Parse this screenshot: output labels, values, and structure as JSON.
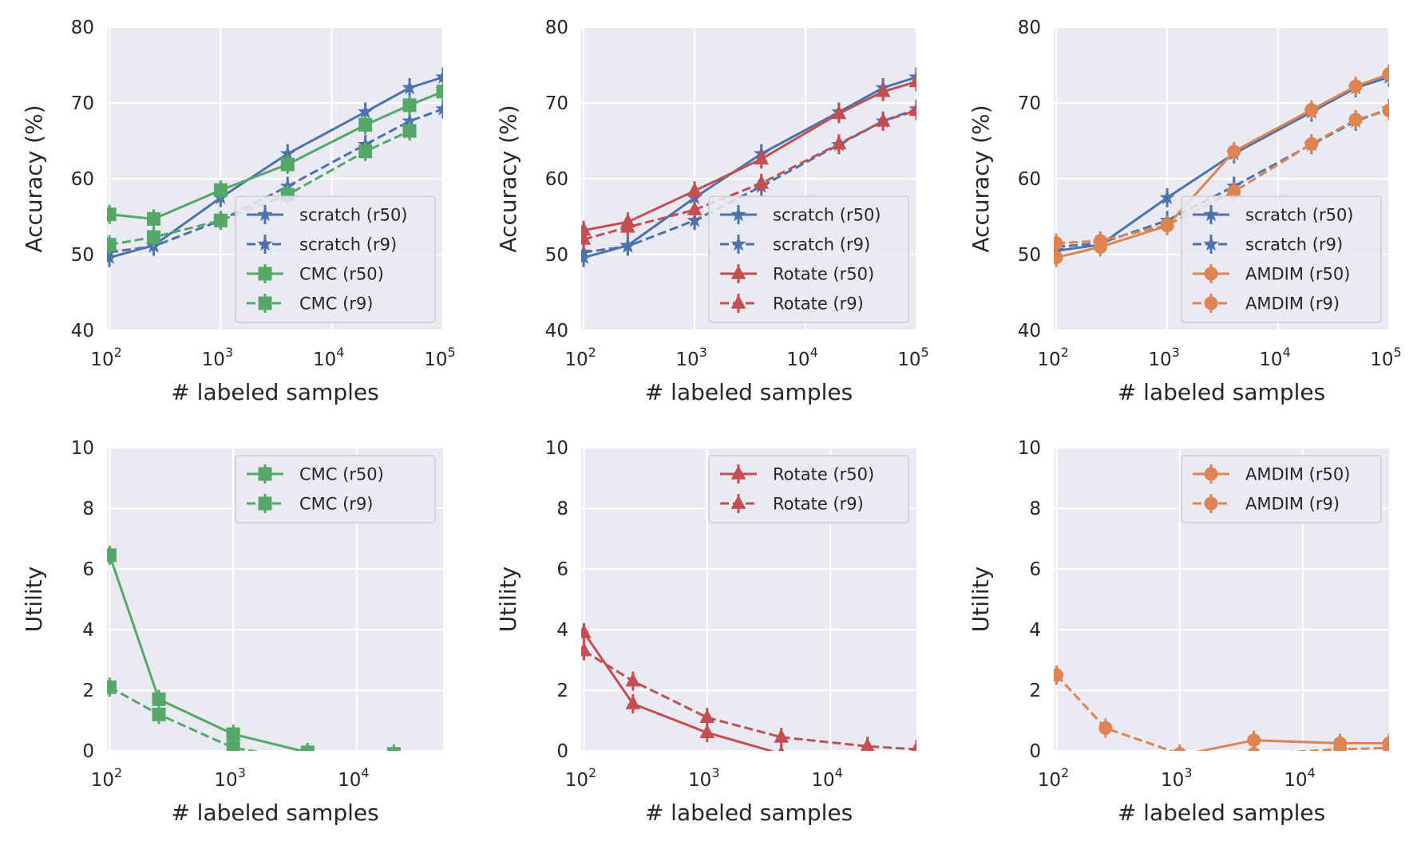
{
  "chart_data": [
    {
      "type": "line",
      "xlabel": "# labeled samples",
      "ylabel": "Accuracy (%)",
      "xscale": "log",
      "xlim": [
        95,
        100000
      ],
      "ylim": [
        40,
        80
      ],
      "yticks": [
        "40",
        "50",
        "60",
        "70",
        "80"
      ],
      "xticks": [
        {
          "base": "10",
          "exp": "2"
        },
        {
          "base": "10",
          "exp": "3"
        },
        {
          "base": "10",
          "exp": "4"
        },
        {
          "base": "10",
          "exp": "5"
        }
      ],
      "grid": true,
      "legend_position": "lower-right",
      "series": [
        {
          "name": "scratch (r50)",
          "color": "#4c72b0",
          "marker": "star",
          "dash": false,
          "x": [
            100,
            250,
            1000,
            4000,
            20000,
            50000,
            100000
          ],
          "y": [
            49.6,
            51.2,
            57.5,
            63.3,
            68.8,
            72.0,
            73.4
          ]
        },
        {
          "name": "scratch (r9)",
          "color": "#4c72b0",
          "marker": "star",
          "dash": true,
          "x": [
            100,
            250,
            1000,
            4000,
            20000,
            50000,
            100000
          ],
          "y": [
            50.3,
            51.1,
            54.5,
            59.0,
            64.5,
            67.6,
            69.2
          ]
        },
        {
          "name": "CMC (r50)",
          "color": "#55a868",
          "marker": "square",
          "dash": false,
          "x": [
            100,
            250,
            1000,
            4000,
            20000,
            50000,
            100000
          ],
          "y": [
            55.3,
            54.7,
            58.5,
            61.9,
            67.1,
            69.7,
            71.5
          ]
        },
        {
          "name": "CMC (r9)",
          "color": "#55a868",
          "marker": "square",
          "dash": true,
          "x": [
            100,
            250,
            1000,
            4000,
            20000,
            50000
          ],
          "y": [
            51.3,
            52.3,
            54.5,
            57.9,
            63.6,
            66.3
          ]
        }
      ]
    },
    {
      "type": "line",
      "xlabel": "# labeled samples",
      "ylabel": "Accuracy (%)",
      "xscale": "log",
      "xlim": [
        95,
        100000
      ],
      "ylim": [
        40,
        80
      ],
      "yticks": [
        "40",
        "50",
        "60",
        "70",
        "80"
      ],
      "xticks": [
        {
          "base": "10",
          "exp": "2"
        },
        {
          "base": "10",
          "exp": "3"
        },
        {
          "base": "10",
          "exp": "4"
        },
        {
          "base": "10",
          "exp": "5"
        }
      ],
      "grid": true,
      "legend_position": "lower-right",
      "series": [
        {
          "name": "scratch (r50)",
          "color": "#4c72b0",
          "marker": "star",
          "dash": false,
          "x": [
            100,
            250,
            1000,
            4000,
            20000,
            50000,
            100000
          ],
          "y": [
            49.6,
            51.2,
            57.5,
            63.3,
            68.8,
            72.0,
            73.4
          ]
        },
        {
          "name": "scratch (r9)",
          "color": "#4c72b0",
          "marker": "star",
          "dash": true,
          "x": [
            100,
            250,
            1000,
            4000,
            20000,
            50000,
            100000
          ],
          "y": [
            50.3,
            51.1,
            54.5,
            59.0,
            64.5,
            67.6,
            69.2
          ]
        },
        {
          "name": "Rotate (r50)",
          "color": "#c44e52",
          "marker": "triangle",
          "dash": false,
          "x": [
            100,
            250,
            1000,
            4000,
            20000,
            50000,
            100000
          ],
          "y": [
            53.2,
            54.3,
            58.4,
            62.6,
            68.6,
            71.5,
            72.8
          ]
        },
        {
          "name": "Rotate (r9)",
          "color": "#c44e52",
          "marker": "triangle",
          "dash": true,
          "x": [
            100,
            250,
            1000,
            4000,
            20000,
            50000,
            100000
          ],
          "y": [
            52.0,
            53.6,
            55.9,
            59.4,
            64.6,
            67.6,
            69.0
          ]
        }
      ]
    },
    {
      "type": "line",
      "xlabel": "# labeled samples",
      "ylabel": "Accuracy (%)",
      "xscale": "log",
      "xlim": [
        95,
        100000
      ],
      "ylim": [
        40,
        80
      ],
      "yticks": [
        "40",
        "50",
        "60",
        "70",
        "80"
      ],
      "xticks": [
        {
          "base": "10",
          "exp": "2"
        },
        {
          "base": "10",
          "exp": "3"
        },
        {
          "base": "10",
          "exp": "4"
        },
        {
          "base": "10",
          "exp": "5"
        }
      ],
      "grid": true,
      "legend_position": "lower-right",
      "series": [
        {
          "name": "scratch (r50)",
          "color": "#4c72b0",
          "marker": "star",
          "dash": false,
          "x": [
            100,
            250,
            1000,
            4000,
            20000,
            50000,
            100000
          ],
          "y": [
            50.5,
            51.3,
            57.5,
            63.3,
            68.8,
            72.0,
            73.4
          ]
        },
        {
          "name": "scratch (r9)",
          "color": "#4c72b0",
          "marker": "star",
          "dash": true,
          "x": [
            100,
            250,
            1000,
            4000,
            20000,
            50000,
            100000
          ],
          "y": [
            51.0,
            51.5,
            54.5,
            59.0,
            64.5,
            67.6,
            69.2
          ]
        },
        {
          "name": "AMDIM (r50)",
          "color": "#dd8452",
          "marker": "circle",
          "dash": false,
          "x": [
            100,
            250,
            1000,
            4000,
            20000,
            50000,
            100000
          ],
          "y": [
            49.6,
            51.0,
            53.8,
            63.6,
            69.1,
            72.2,
            73.8
          ]
        },
        {
          "name": "AMDIM (r9)",
          "color": "#dd8452",
          "marker": "circle",
          "dash": true,
          "x": [
            100,
            250,
            1000,
            4000,
            20000,
            50000,
            100000
          ],
          "y": [
            51.5,
            51.8,
            53.9,
            58.3,
            64.6,
            67.8,
            69.0
          ]
        }
      ]
    },
    {
      "type": "line",
      "xlabel": "# labeled samples",
      "ylabel": "Utility",
      "xscale": "log",
      "xlim": [
        95,
        50000
      ],
      "ylim": [
        0,
        10
      ],
      "yticks": [
        "0",
        "2",
        "4",
        "6",
        "8",
        "10"
      ],
      "xticks": [
        {
          "base": "10",
          "exp": "2"
        },
        {
          "base": "10",
          "exp": "3"
        },
        {
          "base": "10",
          "exp": "4"
        }
      ],
      "grid": true,
      "legend_position": "upper-right",
      "series": [
        {
          "name": "CMC (r50)",
          "color": "#55a868",
          "marker": "square",
          "dash": false,
          "x": [
            100,
            250,
            1000,
            4000,
            20000
          ],
          "y": [
            6.45,
            1.7,
            0.55,
            -0.05,
            -0.1
          ]
        },
        {
          "name": "CMC (r9)",
          "color": "#55a868",
          "marker": "square",
          "dash": true,
          "x": [
            100,
            250,
            1000,
            4000,
            20000
          ],
          "y": [
            2.1,
            1.2,
            0.1,
            -0.3,
            -0.3
          ]
        }
      ]
    },
    {
      "type": "line",
      "xlabel": "# labeled samples",
      "ylabel": "Utility",
      "xscale": "log",
      "xlim": [
        95,
        50000
      ],
      "ylim": [
        0,
        10
      ],
      "yticks": [
        "0",
        "2",
        "4",
        "6",
        "8",
        "10"
      ],
      "xticks": [
        {
          "base": "10",
          "exp": "2"
        },
        {
          "base": "10",
          "exp": "3"
        },
        {
          "base": "10",
          "exp": "4"
        }
      ],
      "grid": true,
      "legend_position": "upper-right",
      "series": [
        {
          "name": "Rotate (r50)",
          "color": "#c44e52",
          "marker": "triangle",
          "dash": false,
          "x": [
            100,
            250,
            1000,
            4000,
            20000
          ],
          "y": [
            3.9,
            1.55,
            0.6,
            -0.1,
            -0.3
          ]
        },
        {
          "name": "Rotate (r9)",
          "color": "#c44e52",
          "marker": "triangle",
          "dash": true,
          "x": [
            100,
            250,
            1000,
            4000,
            20000,
            50000
          ],
          "y": [
            3.3,
            2.3,
            1.1,
            0.45,
            0.15,
            0.05
          ]
        }
      ]
    },
    {
      "type": "line",
      "xlabel": "# labeled samples",
      "ylabel": "Utility",
      "xscale": "log",
      "xlim": [
        95,
        50000
      ],
      "ylim": [
        0,
        10
      ],
      "yticks": [
        "0",
        "2",
        "4",
        "6",
        "8",
        "10"
      ],
      "xticks": [
        {
          "base": "10",
          "exp": "2"
        },
        {
          "base": "10",
          "exp": "3"
        },
        {
          "base": "10",
          "exp": "4"
        }
      ],
      "grid": true,
      "legend_position": "upper-right",
      "series": [
        {
          "name": "AMDIM (r50)",
          "color": "#dd8452",
          "marker": "circle",
          "dash": false,
          "x": [
            1000,
            4000,
            20000,
            50000
          ],
          "y": [
            -0.15,
            0.35,
            0.25,
            0.25
          ]
        },
        {
          "name": "AMDIM (r9)",
          "color": "#dd8452",
          "marker": "circle",
          "dash": true,
          "x": [
            100,
            250,
            1000,
            4000,
            20000,
            50000
          ],
          "y": [
            2.5,
            0.75,
            -0.1,
            -0.1,
            0.05,
            0.1
          ]
        }
      ]
    }
  ]
}
